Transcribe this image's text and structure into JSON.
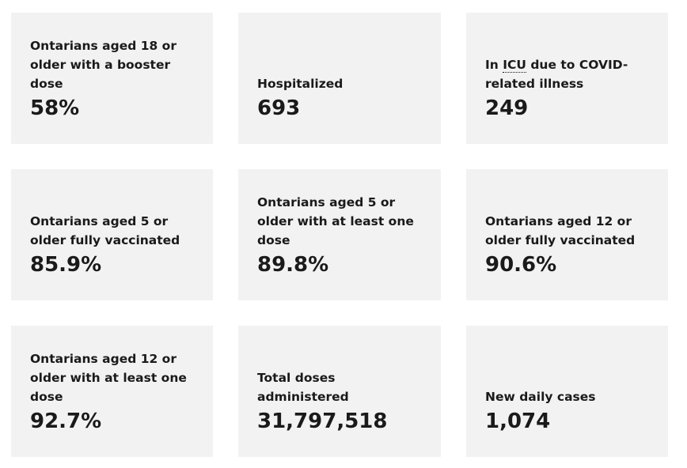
{
  "cards": [
    {
      "label": "Ontarians aged 18 or older with a booster dose",
      "value": "58%"
    },
    {
      "label": "Hospitalized",
      "value": "693"
    },
    {
      "label_prefix": "In ",
      "label_abbr": "ICU",
      "label_suffix": " due to COVID-related illness",
      "value": "249"
    },
    {
      "label": "Ontarians aged 5 or older fully vaccinated",
      "value": "85.9%"
    },
    {
      "label": "Ontarians aged 5 or older with at least one dose",
      "value": "89.8%"
    },
    {
      "label": "Ontarians aged 12 or older fully vaccinated",
      "value": "90.6%"
    },
    {
      "label": "Ontarians aged 12 or older with at least one dose",
      "value": "92.7%"
    },
    {
      "label": "Total doses administered",
      "value": "31,797,518"
    },
    {
      "label": "New daily cases",
      "value": "1,074"
    }
  ]
}
